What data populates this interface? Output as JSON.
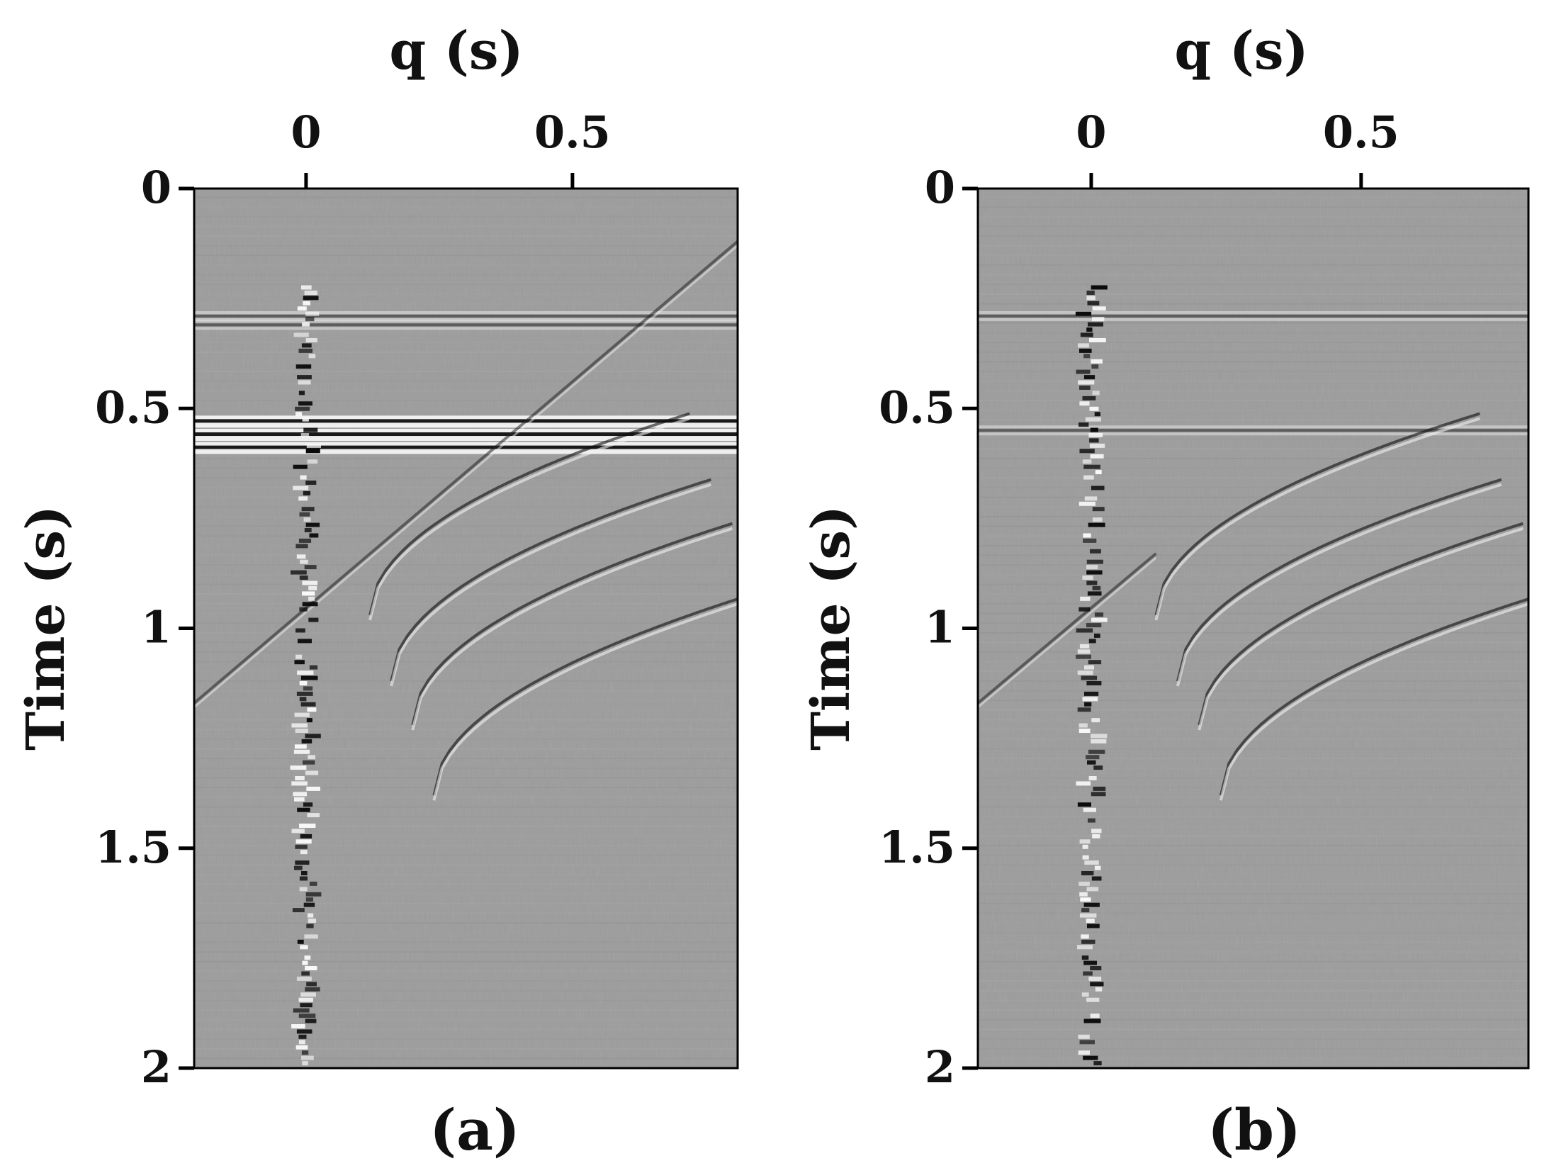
{
  "chart_data": [
    {
      "type": "heatmap",
      "panel_label": "(a)",
      "xlabel": "q (s)",
      "ylabel": "Time (s)",
      "x_ticks": [
        "0",
        "0.5"
      ],
      "x_tick_values": [
        0,
        0.5
      ],
      "y_ticks": [
        "0",
        "0.5",
        "1",
        "1.5",
        "2"
      ],
      "y_tick_values": [
        0,
        0.5,
        1,
        1.5,
        2
      ],
      "xlim": [
        -0.21,
        0.81
      ],
      "ylim": [
        0,
        2
      ],
      "colormap": "grayscale (seismic wiggle density)",
      "background_value_color": "#9c9c9c",
      "features": {
        "flat_events_t": [
          0.29,
          0.31,
          0.53,
          0.56,
          0.59
        ],
        "strong_flat_events_t": [
          0.53,
          0.56,
          0.59
        ],
        "vertical_energy_band_q": 0.0,
        "hyperbolic_events_apex_t": [
          0.97,
          1.12,
          1.22,
          1.38
        ],
        "linear_event_start": [
          -0.21,
          1.17
        ],
        "linear_event_end": [
          0.81,
          0.12
        ]
      }
    },
    {
      "type": "heatmap",
      "panel_label": "(b)",
      "xlabel": "q (s)",
      "ylabel": "Time (s)",
      "x_ticks": [
        "0",
        "0.5"
      ],
      "x_tick_values": [
        0,
        0.5
      ],
      "y_ticks": [
        "0",
        "0.5",
        "1",
        "1.5",
        "2"
      ],
      "y_tick_values": [
        0,
        0.5,
        1,
        1.5,
        2
      ],
      "xlim": [
        -0.21,
        0.81
      ],
      "ylim": [
        0,
        2
      ],
      "colormap": "grayscale (seismic wiggle density)",
      "background_value_color": "#9c9c9c",
      "features": {
        "flat_events_t": [
          0.29,
          0.55
        ],
        "strong_flat_events_t": [],
        "vertical_energy_band_q": 0.0,
        "hyperbolic_events_apex_t": [
          0.97,
          1.12,
          1.22,
          1.38
        ],
        "linear_event_start": [
          -0.21,
          1.17
        ],
        "linear_event_end": [
          0.12,
          0.83
        ]
      }
    }
  ]
}
